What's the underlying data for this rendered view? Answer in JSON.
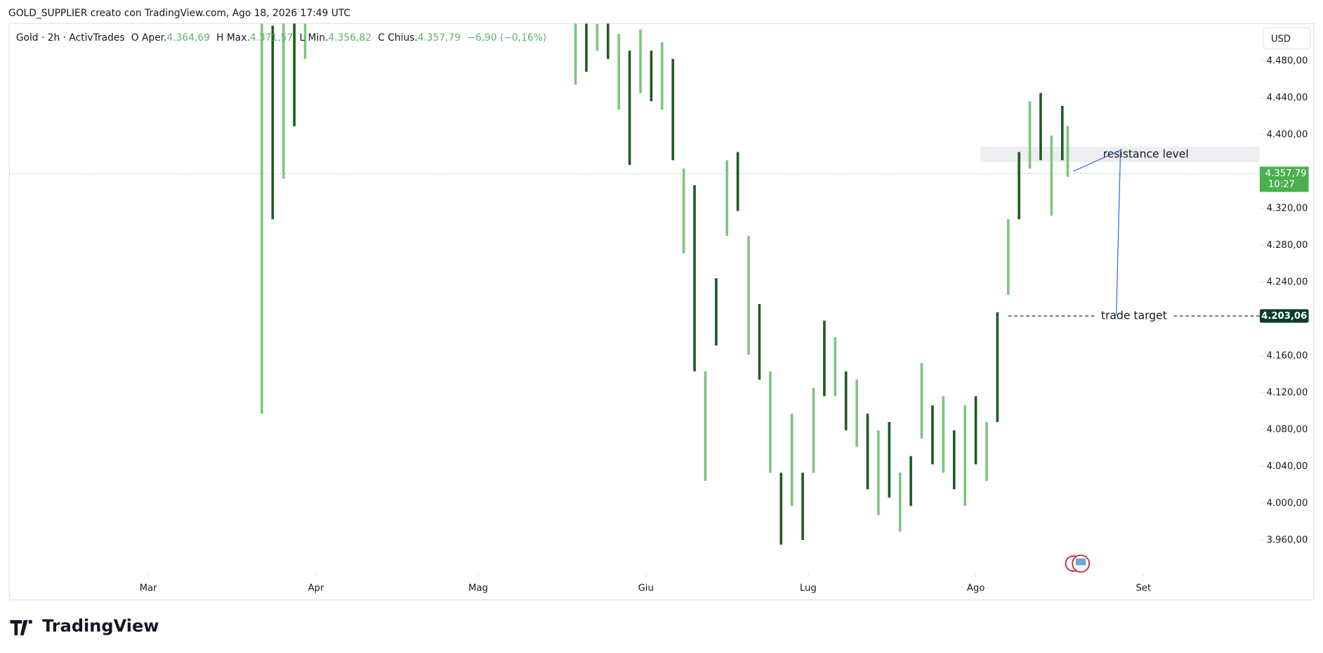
{
  "header": "GOLD_SUPPLIER creato con TradingView.com, Ago 18, 2026 17:49 UTC",
  "footer": "TradingView",
  "currency": "USD",
  "legend": {
    "symbol": "Gold · 2h · ActivTrades",
    "o": "O",
    "open_label": "Aper.",
    "open": "4.364,69",
    "h": "H",
    "high_label": "Max.",
    "high": "4.371,57",
    "l": "L",
    "low_label": "Min.",
    "low": "4.356,82",
    "c": "C",
    "close_label": "Chius.",
    "close": "4.357,79",
    "change": "−6,90 (−0,16%)"
  },
  "chart_data": {
    "type": "candlestick",
    "color": "#1e5a22",
    "x": [
      81,
      83,
      85,
      87,
      89,
      91,
      139,
      141,
      143,
      145,
      147,
      149,
      151,
      153,
      155,
      157,
      159,
      161,
      163,
      165,
      167,
      169,
      171,
      173,
      175,
      177,
      179,
      181,
      183,
      185,
      187,
      189,
      191,
      193,
      195,
      197,
      199,
      201,
      203,
      205,
      207,
      209,
      211,
      213,
      215,
      217,
      219,
      221,
      223,
      225,
      227,
      229,
      230
    ],
    "high": [
      4540,
      4518,
      4525,
      4540,
      4540,
      null,
      4540,
      4530,
      4520,
      4530,
      4509,
      4491,
      4514,
      4491,
      4500,
      4482,
      4363,
      4345,
      4143,
      4244,
      4372,
      4381,
      4290,
      4216,
      4143,
      4033,
      4097,
      4033,
      4125,
      4198,
      4180,
      4143,
      4134,
      4097,
      4079,
      4088,
      4033,
      4051,
      4152,
      4106,
      4116,
      4079,
      4106,
      4116,
      4088,
      4207,
      4308,
      4381,
      4436,
      4445,
      4399,
      4431,
      4409
    ],
    "low": [
      4097,
      4308,
      4352,
      4409,
      4482,
      null,
      4454,
      4468,
      4491,
      4482,
      4427,
      4367,
      4445,
      4436,
      4427,
      4372,
      4271,
      4143,
      4024,
      4171,
      4290,
      4317,
      4161,
      4134,
      4033,
      3955,
      3997,
      3960,
      4033,
      4116,
      4116,
      4079,
      4061,
      4015,
      3987,
      4006,
      3969,
      3997,
      4070,
      4042,
      4033,
      4015,
      3997,
      4042,
      4024,
      4088,
      4226,
      4308,
      4363,
      4372,
      4312,
      4372,
      4354
    ],
    "xlim": [
      34.3,
      265.5
    ],
    "xticks": [
      {
        "value": 60,
        "label": "Mar"
      },
      {
        "value": 91,
        "label": "Apr"
      },
      {
        "value": 121,
        "label": "Mag"
      },
      {
        "value": 152,
        "label": "Giu"
      },
      {
        "value": 182,
        "label": "Lug"
      },
      {
        "value": 213,
        "label": "Ago"
      },
      {
        "value": 244,
        "label": "Set"
      }
    ],
    "ylim": [
      3923.4,
      4520.3
    ],
    "yticks": [
      {
        "value": 4480,
        "label": "4.480,00"
      },
      {
        "value": 4440,
        "label": "4.440,00"
      },
      {
        "value": 4400,
        "label": "4.400,00"
      },
      {
        "value": 4320,
        "label": "4.320,00"
      },
      {
        "value": 4280,
        "label": "4.280,00"
      },
      {
        "value": 4240,
        "label": "4.240,00"
      },
      {
        "value": 4160,
        "label": "4.160,00"
      },
      {
        "value": 4120,
        "label": "4.120,00"
      },
      {
        "value": 4080,
        "label": "4.080,00"
      },
      {
        "value": 4040,
        "label": "4.040,00"
      },
      {
        "value": 4000,
        "label": "4.000,00"
      },
      {
        "value": 3960,
        "label": "3.960,00"
      }
    ],
    "price_line": {
      "value": 4357.79,
      "label": "4.357,79",
      "countdown": "10:27"
    },
    "resistance": {
      "range": [
        4370.1,
        4386.6
      ],
      "text": "resistance level"
    },
    "target": {
      "value": 4203.06,
      "label": "4.203,06",
      "text": "trade target"
    }
  }
}
